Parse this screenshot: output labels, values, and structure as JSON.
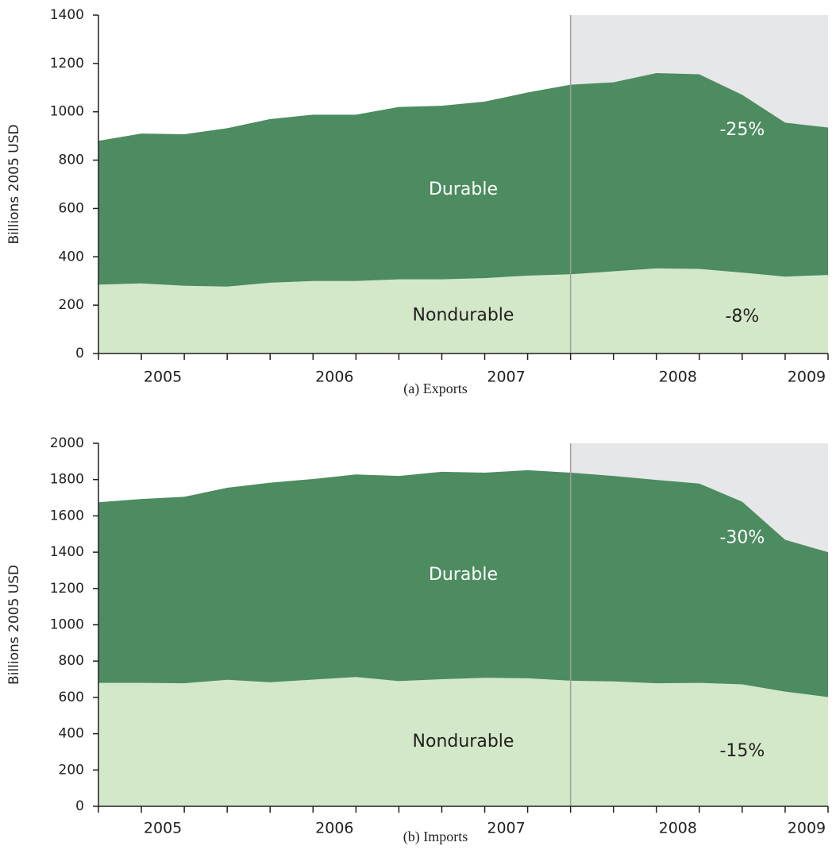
{
  "chart_data": [
    {
      "type": "stacked-area",
      "caption": "(a) Exports",
      "ylabel": "Billions 2005 USD",
      "x": [
        2004.75,
        2005.0,
        2005.25,
        2005.5,
        2005.75,
        2006.0,
        2006.25,
        2006.5,
        2006.75,
        2007.0,
        2007.25,
        2007.5,
        2007.75,
        2008.0,
        2008.25,
        2008.5,
        2008.75,
        2009.0
      ],
      "series": [
        {
          "name": "Nondurable",
          "color": "#d2e8c8",
          "label_color": "#231f20",
          "annotation": "-8%",
          "values": [
            285,
            290,
            280,
            277,
            293,
            300,
            300,
            307,
            307,
            312,
            322,
            328,
            340,
            352,
            350,
            335,
            318,
            325
          ]
        },
        {
          "name": "Durable",
          "color": "#4d8c60",
          "label_color": "#ffffff",
          "annotation": "-25%",
          "values": [
            595,
            620,
            627,
            655,
            677,
            688,
            688,
            713,
            718,
            730,
            758,
            784,
            782,
            808,
            805,
            735,
            637,
            610
          ]
        }
      ],
      "xlim": [
        2004.75,
        2009.0
      ],
      "xticks": [
        {
          "value": 2005.125,
          "label": "2005"
        },
        {
          "value": 2006.125,
          "label": "2006"
        },
        {
          "value": 2007.125,
          "label": "2007"
        },
        {
          "value": 2008.125,
          "label": "2008"
        },
        {
          "value": 2008.875,
          "label": "2009"
        }
      ],
      "ylim": [
        0,
        1400
      ],
      "yticks": [
        0,
        200,
        400,
        600,
        800,
        1000,
        1200,
        1400
      ],
      "shade_xlim": [
        2007.5,
        2009.0
      ],
      "shade_color": "#e6e7e8"
    },
    {
      "type": "stacked-area",
      "caption": "(b) Imports",
      "ylabel": "Billions 2005 USD",
      "x": [
        2004.75,
        2005.0,
        2005.25,
        2005.5,
        2005.75,
        2006.0,
        2006.25,
        2006.5,
        2006.75,
        2007.0,
        2007.25,
        2007.5,
        2007.75,
        2008.0,
        2008.25,
        2008.5,
        2008.75,
        2009.0
      ],
      "series": [
        {
          "name": "Nondurable",
          "color": "#d2e8c8",
          "label_color": "#231f20",
          "annotation": "-15%",
          "values": [
            680,
            680,
            678,
            697,
            683,
            698,
            712,
            690,
            700,
            708,
            705,
            692,
            688,
            678,
            680,
            672,
            632,
            602
          ]
        },
        {
          "name": "Durable",
          "color": "#4d8c60",
          "label_color": "#ffffff",
          "annotation": "-30%",
          "values": [
            995,
            1013,
            1027,
            1058,
            1100,
            1105,
            1116,
            1130,
            1143,
            1130,
            1147,
            1146,
            1132,
            1120,
            1098,
            1006,
            836,
            798
          ]
        }
      ],
      "xlim": [
        2004.75,
        2009.0
      ],
      "xticks": [
        {
          "value": 2005.125,
          "label": "2005"
        },
        {
          "value": 2006.125,
          "label": "2006"
        },
        {
          "value": 2007.125,
          "label": "2007"
        },
        {
          "value": 2008.125,
          "label": "2008"
        },
        {
          "value": 2008.875,
          "label": "2009"
        }
      ],
      "ylim": [
        0,
        2000
      ],
      "yticks": [
        0,
        200,
        400,
        600,
        800,
        1000,
        1200,
        1400,
        1600,
        1800,
        2000
      ],
      "shade_xlim": [
        2007.5,
        2009.0
      ],
      "shade_color": "#e6e7e8"
    }
  ]
}
